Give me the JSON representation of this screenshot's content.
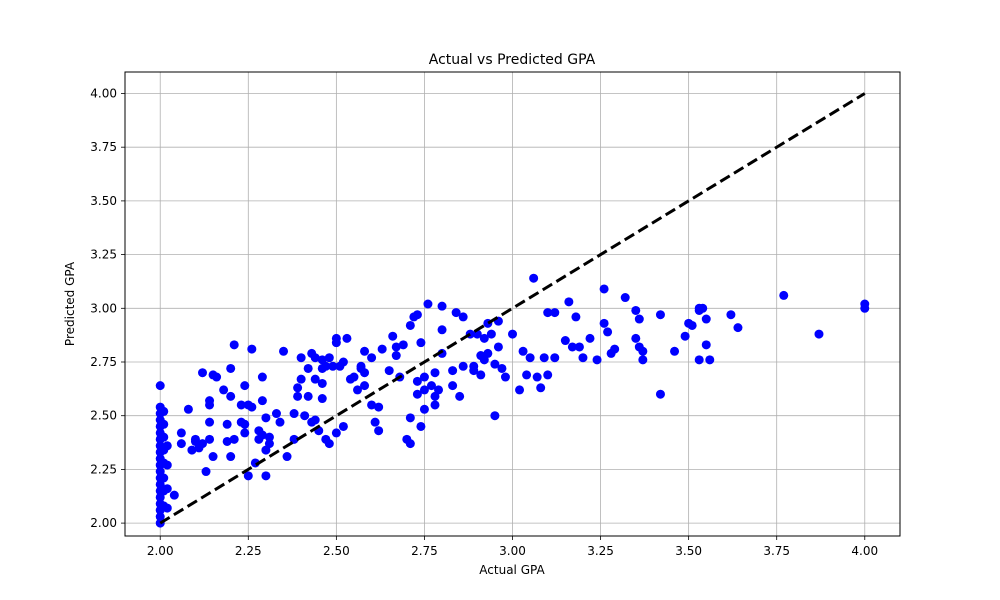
{
  "chart_data": {
    "type": "scatter",
    "title": "Actual vs Predicted GPA",
    "xlabel": "Actual GPA",
    "ylabel": "Predicted GPA",
    "xlim": [
      1.9,
      4.1
    ],
    "ylim": [
      1.94,
      4.1
    ],
    "xticks": [
      "2.00",
      "2.25",
      "2.50",
      "2.75",
      "3.00",
      "3.25",
      "3.50",
      "3.75",
      "4.00"
    ],
    "yticks": [
      "2.00",
      "2.25",
      "2.50",
      "2.75",
      "3.00",
      "3.25",
      "3.50",
      "3.75",
      "4.00"
    ],
    "grid": true,
    "point_color": "#0000ff",
    "reference_line": {
      "from": [
        2.0,
        2.0
      ],
      "to": [
        4.0,
        4.0
      ],
      "style": "dashed",
      "color": "#000000"
    },
    "points": [
      [
        2.0,
        2.0
      ],
      [
        2.0,
        2.03
      ],
      [
        2.0,
        2.06
      ],
      [
        2.0,
        2.09
      ],
      [
        2.0,
        2.12
      ],
      [
        2.0,
        2.15
      ],
      [
        2.0,
        2.18
      ],
      [
        2.0,
        2.21
      ],
      [
        2.0,
        2.24
      ],
      [
        2.0,
        2.27
      ],
      [
        2.0,
        2.3
      ],
      [
        2.0,
        2.33
      ],
      [
        2.0,
        2.36
      ],
      [
        2.0,
        2.39
      ],
      [
        2.0,
        2.42
      ],
      [
        2.0,
        2.45
      ],
      [
        2.0,
        2.48
      ],
      [
        2.0,
        2.51
      ],
      [
        2.0,
        2.54
      ],
      [
        2.0,
        2.64
      ],
      [
        2.01,
        2.08
      ],
      [
        2.01,
        2.15
      ],
      [
        2.01,
        2.21
      ],
      [
        2.01,
        2.28
      ],
      [
        2.01,
        2.34
      ],
      [
        2.01,
        2.4
      ],
      [
        2.01,
        2.46
      ],
      [
        2.01,
        2.52
      ],
      [
        2.02,
        2.07
      ],
      [
        2.02,
        2.16
      ],
      [
        2.02,
        2.27
      ],
      [
        2.02,
        2.36
      ],
      [
        2.04,
        2.13
      ],
      [
        2.06,
        2.37
      ],
      [
        2.06,
        2.42
      ],
      [
        2.08,
        2.53
      ],
      [
        2.09,
        2.34
      ],
      [
        2.1,
        2.38
      ],
      [
        2.1,
        2.39
      ],
      [
        2.11,
        2.35
      ],
      [
        2.12,
        2.7
      ],
      [
        2.12,
        2.37
      ],
      [
        2.13,
        2.24
      ],
      [
        2.14,
        2.39
      ],
      [
        2.14,
        2.47
      ],
      [
        2.14,
        2.55
      ],
      [
        2.14,
        2.57
      ],
      [
        2.15,
        2.69
      ],
      [
        2.15,
        2.31
      ],
      [
        2.16,
        2.68
      ],
      [
        2.18,
        2.62
      ],
      [
        2.19,
        2.38
      ],
      [
        2.19,
        2.46
      ],
      [
        2.2,
        2.59
      ],
      [
        2.2,
        2.72
      ],
      [
        2.2,
        2.31
      ],
      [
        2.21,
        2.39
      ],
      [
        2.21,
        2.83
      ],
      [
        2.23,
        2.55
      ],
      [
        2.23,
        2.47
      ],
      [
        2.24,
        2.42
      ],
      [
        2.24,
        2.64
      ],
      [
        2.24,
        2.46
      ],
      [
        2.25,
        2.55
      ],
      [
        2.25,
        2.22
      ],
      [
        2.26,
        2.54
      ],
      [
        2.26,
        2.81
      ],
      [
        2.27,
        2.28
      ],
      [
        2.28,
        2.39
      ],
      [
        2.28,
        2.43
      ],
      [
        2.29,
        2.68
      ],
      [
        2.29,
        2.41
      ],
      [
        2.29,
        2.57
      ],
      [
        2.3,
        2.49
      ],
      [
        2.3,
        2.34
      ],
      [
        2.3,
        2.22
      ],
      [
        2.31,
        2.4
      ],
      [
        2.31,
        2.37
      ],
      [
        2.33,
        2.51
      ],
      [
        2.34,
        2.47
      ],
      [
        2.35,
        2.8
      ],
      [
        2.36,
        2.31
      ],
      [
        2.38,
        2.51
      ],
      [
        2.38,
        2.39
      ],
      [
        2.39,
        2.59
      ],
      [
        2.39,
        2.63
      ],
      [
        2.4,
        2.77
      ],
      [
        2.4,
        2.67
      ],
      [
        2.41,
        2.5
      ],
      [
        2.42,
        2.59
      ],
      [
        2.42,
        2.72
      ],
      [
        2.43,
        2.79
      ],
      [
        2.43,
        2.47
      ],
      [
        2.44,
        2.77
      ],
      [
        2.44,
        2.67
      ],
      [
        2.44,
        2.48
      ],
      [
        2.45,
        2.43
      ],
      [
        2.46,
        2.76
      ],
      [
        2.46,
        2.58
      ],
      [
        2.46,
        2.65
      ],
      [
        2.46,
        2.72
      ],
      [
        2.47,
        2.39
      ],
      [
        2.47,
        2.73
      ],
      [
        2.48,
        2.37
      ],
      [
        2.48,
        2.77
      ],
      [
        2.49,
        2.73
      ],
      [
        2.5,
        2.84
      ],
      [
        2.5,
        2.86
      ],
      [
        2.5,
        2.42
      ],
      [
        2.51,
        2.73
      ],
      [
        2.52,
        2.45
      ],
      [
        2.52,
        2.75
      ],
      [
        2.53,
        2.86
      ],
      [
        2.54,
        2.67
      ],
      [
        2.55,
        2.68
      ],
      [
        2.56,
        2.62
      ],
      [
        2.57,
        2.73
      ],
      [
        2.57,
        2.72
      ],
      [
        2.58,
        2.7
      ],
      [
        2.58,
        2.64
      ],
      [
        2.58,
        2.8
      ],
      [
        2.6,
        2.77
      ],
      [
        2.6,
        2.55
      ],
      [
        2.61,
        2.47
      ],
      [
        2.62,
        2.54
      ],
      [
        2.62,
        2.43
      ],
      [
        2.63,
        2.81
      ],
      [
        2.65,
        2.71
      ],
      [
        2.66,
        2.87
      ],
      [
        2.67,
        2.82
      ],
      [
        2.67,
        2.78
      ],
      [
        2.68,
        2.68
      ],
      [
        2.69,
        2.83
      ],
      [
        2.7,
        2.39
      ],
      [
        2.71,
        2.37
      ],
      [
        2.71,
        2.49
      ],
      [
        2.71,
        2.92
      ],
      [
        2.72,
        2.96
      ],
      [
        2.73,
        2.97
      ],
      [
        2.73,
        2.6
      ],
      [
        2.73,
        2.66
      ],
      [
        2.74,
        2.84
      ],
      [
        2.74,
        2.45
      ],
      [
        2.75,
        2.53
      ],
      [
        2.75,
        2.68
      ],
      [
        2.75,
        2.62
      ],
      [
        2.76,
        3.02
      ],
      [
        2.77,
        2.64
      ],
      [
        2.78,
        2.55
      ],
      [
        2.78,
        2.7
      ],
      [
        2.78,
        2.59
      ],
      [
        2.79,
        2.62
      ],
      [
        2.8,
        3.01
      ],
      [
        2.8,
        2.9
      ],
      [
        2.8,
        2.79
      ],
      [
        2.83,
        2.64
      ],
      [
        2.83,
        2.71
      ],
      [
        2.84,
        2.98
      ],
      [
        2.85,
        2.59
      ],
      [
        2.86,
        2.73
      ],
      [
        2.86,
        2.96
      ],
      [
        2.88,
        2.88
      ],
      [
        2.89,
        2.73
      ],
      [
        2.89,
        2.71
      ],
      [
        2.9,
        2.88
      ],
      [
        2.91,
        2.78
      ],
      [
        2.91,
        2.69
      ],
      [
        2.92,
        2.76
      ],
      [
        2.92,
        2.86
      ],
      [
        2.93,
        2.79
      ],
      [
        2.93,
        2.93
      ],
      [
        2.94,
        2.88
      ],
      [
        2.95,
        2.5
      ],
      [
        2.95,
        2.74
      ],
      [
        2.96,
        2.94
      ],
      [
        2.96,
        2.82
      ],
      [
        2.97,
        2.72
      ],
      [
        2.98,
        2.68
      ],
      [
        3.0,
        2.88
      ],
      [
        3.02,
        2.62
      ],
      [
        3.03,
        2.8
      ],
      [
        3.04,
        2.69
      ],
      [
        3.05,
        2.77
      ],
      [
        3.06,
        3.14
      ],
      [
        3.07,
        2.68
      ],
      [
        3.08,
        2.63
      ],
      [
        3.09,
        2.77
      ],
      [
        3.1,
        2.98
      ],
      [
        3.1,
        2.69
      ],
      [
        3.12,
        2.77
      ],
      [
        3.12,
        2.98
      ],
      [
        3.15,
        2.85
      ],
      [
        3.16,
        3.03
      ],
      [
        3.17,
        2.82
      ],
      [
        3.18,
        2.96
      ],
      [
        3.19,
        2.82
      ],
      [
        3.2,
        2.77
      ],
      [
        3.22,
        2.86
      ],
      [
        3.24,
        2.76
      ],
      [
        3.26,
        3.09
      ],
      [
        3.26,
        2.93
      ],
      [
        3.27,
        2.89
      ],
      [
        3.28,
        2.79
      ],
      [
        3.29,
        2.81
      ],
      [
        3.32,
        3.05
      ],
      [
        3.35,
        2.86
      ],
      [
        3.35,
        2.99
      ],
      [
        3.36,
        2.82
      ],
      [
        3.36,
        2.95
      ],
      [
        3.37,
        2.8
      ],
      [
        3.37,
        2.76
      ],
      [
        3.42,
        2.6
      ],
      [
        3.42,
        2.97
      ],
      [
        3.46,
        2.8
      ],
      [
        3.49,
        2.87
      ],
      [
        3.5,
        2.93
      ],
      [
        3.51,
        2.92
      ],
      [
        3.53,
        2.99
      ],
      [
        3.53,
        3.0
      ],
      [
        3.53,
        2.76
      ],
      [
        3.54,
        3.0
      ],
      [
        3.55,
        2.95
      ],
      [
        3.55,
        2.83
      ],
      [
        3.56,
        2.76
      ],
      [
        3.62,
        2.97
      ],
      [
        3.64,
        2.91
      ],
      [
        3.77,
        3.06
      ],
      [
        3.87,
        2.88
      ],
      [
        4.0,
        3.0
      ],
      [
        4.0,
        3.02
      ]
    ]
  }
}
